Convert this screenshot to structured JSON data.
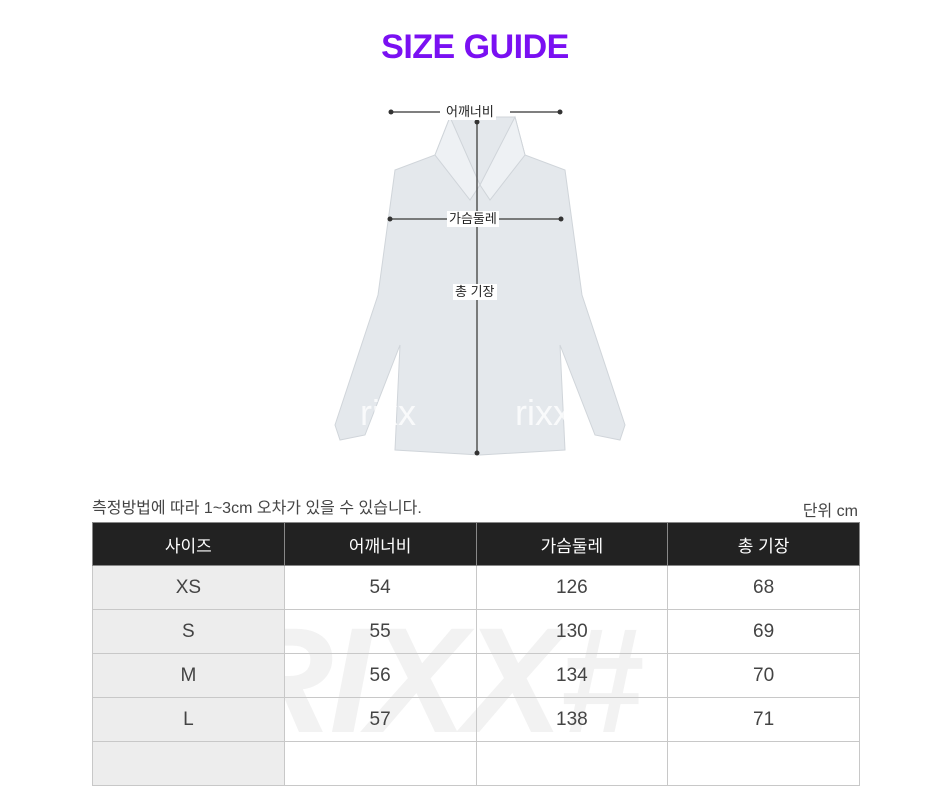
{
  "colors": {
    "accent": "#7a10f2",
    "header_bg": "#222222",
    "size_col_bg": "#ededed"
  },
  "title": "SIZE GUIDE",
  "diagram": {
    "shoulder": "어깨너비",
    "chest": "가슴둘레",
    "length": "총 기장",
    "watermark": "rixx"
  },
  "note": "측정방법에 따라 1~3cm 오차가 있을 수 있습니다.",
  "unit": "단위 cm",
  "table": {
    "headers": [
      "사이즈",
      "어깨너비",
      "가슴둘레",
      "총 기장"
    ],
    "rows": [
      [
        "XS",
        "54",
        "126",
        "68"
      ],
      [
        "S",
        "55",
        "130",
        "69"
      ],
      [
        "M",
        "56",
        "134",
        "70"
      ],
      [
        "L",
        "57",
        "138",
        "71"
      ],
      [
        "",
        "",
        "",
        ""
      ]
    ],
    "watermark": "RIXX#"
  }
}
